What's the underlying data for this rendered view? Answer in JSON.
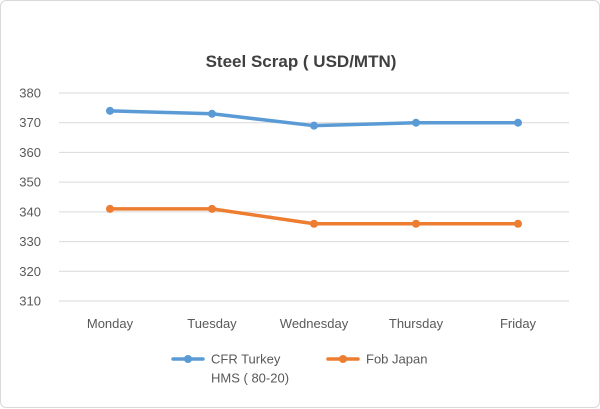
{
  "chart_data": {
    "type": "line",
    "title": "Steel Scrap ( USD/MTN)",
    "categories": [
      "Monday",
      "Tuesday",
      "Wednesday",
      "Thursday",
      "Friday"
    ],
    "y_ticks": [
      "310",
      "320",
      "330",
      "340",
      "350",
      "360",
      "370",
      "380"
    ],
    "ylim": [
      310,
      380
    ],
    "grid": true,
    "legend_position": "bottom",
    "series": [
      {
        "name_lines": [
          "CFR Turkey",
          "HMS ( 80-20)"
        ],
        "color": "#5b9bd5",
        "values": [
          374,
          373,
          369,
          370,
          370
        ]
      },
      {
        "name_lines": [
          "Fob Japan"
        ],
        "color": "#ed7d31",
        "values": [
          341,
          341,
          336,
          336,
          336
        ]
      }
    ]
  }
}
